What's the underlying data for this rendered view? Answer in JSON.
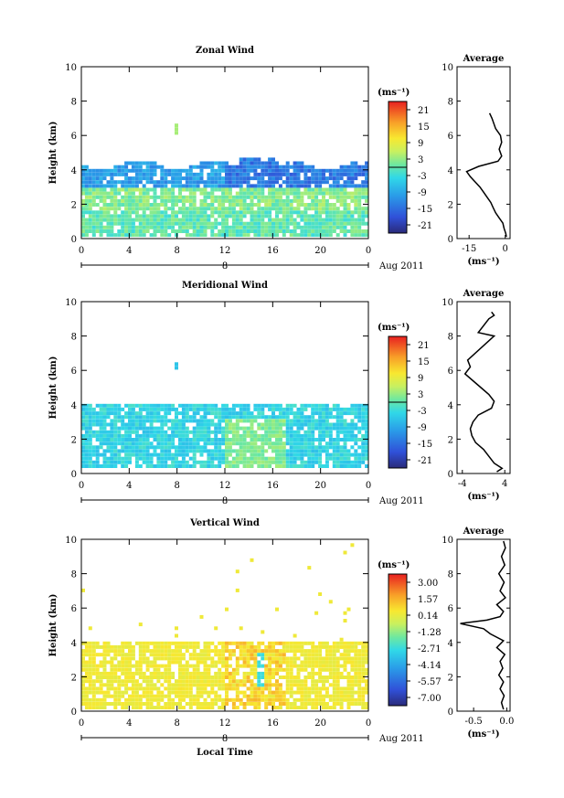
{
  "chart_data": [
    {
      "type": "heatmap",
      "title": "Zonal Wind",
      "xlabel": "",
      "ylabel": "Height (km)",
      "xlim": [
        0,
        24
      ],
      "ylim": [
        0,
        10
      ],
      "xticks": [
        "0",
        "4",
        "8",
        "12",
        "16",
        "20",
        "0"
      ],
      "yticks": [
        "0",
        "2",
        "4",
        "6",
        "8",
        "10"
      ],
      "date_axis": {
        "day": "8",
        "label": "Aug 2011"
      },
      "colorbar": {
        "unit": "(ms⁻¹)",
        "ticks": [
          "21",
          "15",
          "9",
          "3",
          "-3",
          "-9",
          "-15",
          "-21"
        ],
        "range": [
          -24,
          24
        ]
      },
      "profile": {
        "title": "Average",
        "xlabel": "(ms⁻¹)",
        "xticks": [
          "-15",
          "0"
        ],
        "xlim": [
          -20,
          2
        ],
        "yticks": [
          "0",
          "2",
          "4",
          "6",
          "8",
          "10"
        ],
        "heights": [
          0.1,
          0.3,
          0.6,
          0.9,
          1.2,
          1.5,
          1.8,
          2.1,
          2.4,
          2.7,
          3.0,
          3.3,
          3.6,
          3.9,
          4.2,
          4.5,
          4.8,
          5.2,
          5.6,
          6.0,
          6.4,
          7.0,
          7.3
        ],
        "values": [
          0.5,
          0.2,
          -0.5,
          -1.0,
          -2.5,
          -4.0,
          -5.0,
          -6.0,
          -7.5,
          -9.0,
          -10.5,
          -12.5,
          -14.5,
          -16.0,
          -11.0,
          -3.0,
          -1.5,
          -2.5,
          -1.5,
          -2.0,
          -4.0,
          -5.5,
          -6.5
        ]
      }
    },
    {
      "type": "heatmap",
      "title": "Meridional Wind",
      "xlabel": "",
      "ylabel": "Height (km)",
      "xlim": [
        0,
        24
      ],
      "ylim": [
        0,
        10
      ],
      "xticks": [
        "0",
        "4",
        "8",
        "12",
        "16",
        "20",
        "0"
      ],
      "yticks": [
        "0",
        "2",
        "4",
        "6",
        "8",
        "10"
      ],
      "date_axis": {
        "day": "8",
        "label": "Aug 2011"
      },
      "colorbar": {
        "unit": "(ms⁻¹)",
        "ticks": [
          "21",
          "15",
          "9",
          "3",
          "-3",
          "-9",
          "-15",
          "-21"
        ],
        "range": [
          -24,
          24
        ]
      },
      "profile": {
        "title": "Average",
        "xlabel": "(ms⁻¹)",
        "xticks": [
          "-4",
          "4"
        ],
        "xlim": [
          -5,
          5
        ],
        "yticks": [
          "0",
          "2",
          "4",
          "6",
          "8",
          "10"
        ],
        "heights": [
          0.1,
          0.3,
          0.6,
          1.0,
          1.4,
          1.8,
          2.2,
          2.6,
          3.0,
          3.4,
          3.8,
          4.2,
          4.6,
          5.0,
          5.4,
          5.8,
          6.2,
          6.6,
          8.0,
          8.2,
          9.0,
          9.2,
          9.4
        ],
        "values": [
          2.5,
          3.5,
          2.0,
          1.0,
          0.0,
          -1.5,
          -2.2,
          -2.5,
          -2.0,
          -1.0,
          1.5,
          2.0,
          1.0,
          -0.5,
          -2.0,
          -3.5,
          -2.5,
          -3.0,
          2.0,
          -1.0,
          1.0,
          2.0,
          1.5
        ]
      }
    },
    {
      "type": "heatmap",
      "title": "Vertical Wind",
      "xlabel": "Local Time",
      "ylabel": "Height (km)",
      "xlim": [
        0,
        24
      ],
      "ylim": [
        0,
        10
      ],
      "xticks": [
        "0",
        "4",
        "8",
        "12",
        "16",
        "20",
        "0"
      ],
      "yticks": [
        "0",
        "2",
        "4",
        "6",
        "8",
        "10"
      ],
      "date_axis": {
        "day": "8",
        "label": "Aug 2011"
      },
      "colorbar": {
        "unit": "(ms⁻¹)",
        "ticks": [
          "3.00",
          "1.57",
          "0.14",
          "-1.28",
          "-2.71",
          "-4.14",
          "-5.57",
          "-7.00"
        ],
        "range": [
          -7.71,
          3.71
        ]
      },
      "profile": {
        "title": "Average",
        "xlabel": "(ms⁻¹)",
        "xticks": [
          "-0.5",
          "0.0"
        ],
        "xlim": [
          -0.75,
          0.05
        ],
        "yticks": [
          "0",
          "2",
          "4",
          "6",
          "8",
          "10"
        ],
        "heights": [
          0.1,
          0.5,
          0.9,
          1.3,
          1.7,
          2.1,
          2.5,
          2.9,
          3.3,
          3.7,
          4.1,
          4.5,
          4.8,
          5.1,
          5.3,
          5.5,
          5.8,
          6.2,
          6.6,
          7.0,
          7.5,
          8.0,
          8.5,
          9.0,
          9.5,
          9.9
        ],
        "values": [
          -0.05,
          -0.08,
          -0.04,
          -0.1,
          -0.05,
          -0.12,
          -0.06,
          -0.1,
          -0.03,
          -0.15,
          -0.05,
          -0.25,
          -0.35,
          -0.7,
          -0.3,
          -0.1,
          -0.05,
          -0.15,
          -0.02,
          -0.1,
          -0.04,
          -0.12,
          -0.03,
          -0.08,
          -0.02,
          -0.05
        ]
      }
    }
  ]
}
